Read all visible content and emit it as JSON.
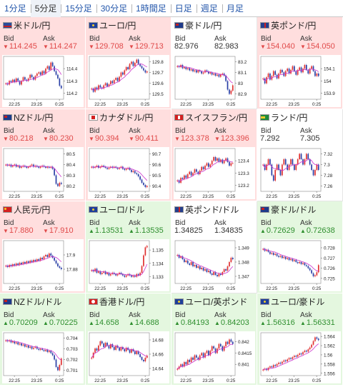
{
  "timeframe_tabs": [
    "1分足",
    "5分足",
    "15分足",
    "30分足",
    "1時間足",
    "日足",
    "週足",
    "月足"
  ],
  "active_tab": 1,
  "labels": {
    "bid": "Bid",
    "ask": "Ask"
  },
  "colors": {
    "down_bg": "#ffdede",
    "up_bg": "#e4f7df",
    "down_text": "#e04a4a",
    "up_text": "#2f8f2f",
    "candle_up": "#e03030",
    "candle_down": "#2a3fa6",
    "moving_average": "#cc33cc"
  },
  "pairs": [
    {
      "name": "米ドル/円",
      "flag": "us-flag-icon",
      "trend": "down",
      "arrow": "▼",
      "bid": "114.245",
      "ask": "114.247",
      "chart_data": {
        "type": "candlestick",
        "x_ticks": [
          "22:25",
          "23:25",
          "0:25"
        ],
        "y_ticks": [
          "114.4",
          "114.3",
          "114.2"
        ],
        "ylim": [
          114.15,
          114.5
        ],
        "closes": [
          114.28,
          114.27,
          114.3,
          114.29,
          114.31,
          114.29,
          114.32,
          114.3,
          114.27,
          114.3,
          114.33,
          114.31,
          114.3,
          114.32,
          114.35,
          114.33,
          114.31,
          114.34,
          114.36,
          114.37,
          114.35,
          114.38,
          114.36,
          114.4,
          114.42,
          114.39,
          114.45,
          114.42,
          114.38,
          114.35,
          114.32,
          114.26,
          114.24
        ]
      }
    },
    {
      "name": "ユーロ/円",
      "flag": "eu-flag-icon",
      "trend": "down",
      "arrow": "▼",
      "bid": "129.708",
      "ask": "129.713",
      "chart_data": {
        "type": "candlestick",
        "x_ticks": [
          "22:25",
          "23:25",
          "0:25"
        ],
        "y_ticks": [
          "129.8",
          "129.7",
          "129.6",
          "129.5"
        ],
        "ylim": [
          129.45,
          129.85
        ],
        "closes": [
          129.55,
          129.52,
          129.56,
          129.54,
          129.58,
          129.56,
          129.55,
          129.58,
          129.6,
          129.57,
          129.59,
          129.62,
          129.6,
          129.63,
          129.65,
          129.62,
          129.66,
          129.7,
          129.68,
          129.72,
          129.75,
          129.73,
          129.78,
          129.8,
          129.76,
          129.79,
          129.82,
          129.78,
          129.76,
          129.74,
          129.72,
          129.7,
          129.71
        ]
      }
    },
    {
      "name": "豪ドル/円",
      "flag": "au-flag-icon",
      "trend": "neutral",
      "arrow": "",
      "bid": "82.976",
      "ask": "82.983",
      "chart_data": {
        "type": "candlestick",
        "x_ticks": [
          "22:25",
          "23:25",
          "0:25"
        ],
        "y_ticks": [
          "83.2",
          "83.1",
          "83",
          "82.9"
        ],
        "ylim": [
          82.85,
          83.25
        ],
        "closes": [
          83.16,
          83.15,
          83.17,
          83.14,
          83.15,
          83.13,
          83.14,
          83.12,
          83.13,
          83.11,
          83.12,
          83.1,
          83.12,
          83.11,
          83.09,
          83.1,
          83.12,
          83.11,
          83.09,
          83.1,
          83.08,
          83.09,
          83.07,
          83.08,
          83.06,
          83.08,
          83.09,
          83.07,
          83.02,
          82.94,
          82.9,
          82.93,
          82.98
        ]
      }
    },
    {
      "name": "英ポンド/円",
      "flag": "gb-flag-icon",
      "trend": "down",
      "arrow": "▼",
      "bid": "154.040",
      "ask": "154.050",
      "chart_data": {
        "type": "candlestick",
        "x_ticks": [
          "22:25",
          "23:25",
          "0:25"
        ],
        "y_ticks": [
          "154.1",
          "154",
          "153.9"
        ],
        "ylim": [
          153.85,
          154.2
        ],
        "closes": [
          154.02,
          153.98,
          154.03,
          154.06,
          154.01,
          154.04,
          154.08,
          154.05,
          154.02,
          154.06,
          154.09,
          154.07,
          154.04,
          154.08,
          154.1,
          154.06,
          154.09,
          154.12,
          154.08,
          154.05,
          154.09,
          154.11,
          154.07,
          154.1,
          154.13,
          154.09,
          154.06,
          154.1,
          154.12,
          154.08,
          154.04,
          154.06,
          154.04
        ]
      }
    },
    {
      "name": "NZドル/円",
      "flag": "nz-flag-icon",
      "trend": "down",
      "arrow": "▼",
      "bid": "80.218",
      "ask": "80.230",
      "chart_data": {
        "type": "candlestick",
        "x_ticks": [
          "22:25",
          "23:25",
          "0:25"
        ],
        "y_ticks": [
          "80.5",
          "80.4",
          "80.3",
          "80.2"
        ],
        "ylim": [
          80.15,
          80.55
        ],
        "closes": [
          80.4,
          80.39,
          80.4,
          80.38,
          80.39,
          80.4,
          80.38,
          80.39,
          80.37,
          80.38,
          80.39,
          80.38,
          80.37,
          80.38,
          80.39,
          80.4,
          80.38,
          80.39,
          80.38,
          80.37,
          80.38,
          80.39,
          80.38,
          80.37,
          80.38,
          80.37,
          80.38,
          80.36,
          80.3,
          80.22,
          80.2,
          80.23,
          80.22
        ]
      }
    },
    {
      "name": "カナダドル/円",
      "flag": "ca-flag-icon",
      "trend": "down",
      "arrow": "▼",
      "bid": "90.394",
      "ask": "90.411",
      "chart_data": {
        "type": "candlestick",
        "x_ticks": [
          "22:25",
          "23:25",
          "0:25"
        ],
        "y_ticks": [
          "90.7",
          "90.6",
          "90.5",
          "90.4"
        ],
        "ylim": [
          90.35,
          90.75
        ],
        "closes": [
          90.58,
          90.57,
          90.58,
          90.59,
          90.57,
          90.58,
          90.59,
          90.58,
          90.57,
          90.56,
          90.57,
          90.58,
          90.57,
          90.58,
          90.57,
          90.56,
          90.57,
          90.58,
          90.56,
          90.55,
          90.56,
          90.57,
          90.55,
          90.53,
          90.54,
          90.52,
          90.51,
          90.49,
          90.46,
          90.43,
          90.41,
          90.39,
          90.4
        ]
      }
    },
    {
      "name": "スイスフラン/円",
      "flag": "ch-flag-icon",
      "trend": "down",
      "arrow": "▼",
      "bid": "123.378",
      "ask": "123.396",
      "chart_data": {
        "type": "candlestick",
        "x_ticks": [
          "22:25",
          "23:25",
          "0:25"
        ],
        "y_ticks": [
          "123.4",
          "123.3",
          "123.2"
        ],
        "ylim": [
          123.15,
          123.5
        ],
        "closes": [
          123.24,
          123.22,
          123.26,
          123.25,
          123.28,
          123.26,
          123.29,
          123.31,
          123.28,
          123.3,
          123.33,
          123.31,
          123.29,
          123.32,
          123.35,
          123.33,
          123.36,
          123.38,
          123.35,
          123.37,
          123.4,
          123.43,
          123.4,
          123.42,
          123.39,
          123.41,
          123.38,
          123.4,
          123.42,
          123.39,
          123.36,
          123.38,
          123.38
        ]
      }
    },
    {
      "name": "ランド/円",
      "flag": "za-flag-icon",
      "trend": "neutral",
      "arrow": "",
      "bid": "7.292",
      "ask": "7.305",
      "chart_data": {
        "type": "candlestick",
        "x_ticks": [
          "22:25",
          "23:25",
          "0:25"
        ],
        "y_ticks": [
          "7.32",
          "7.3",
          "7.28",
          "7.26"
        ],
        "ylim": [
          7.25,
          7.33
        ],
        "closes": [
          7.3,
          7.29,
          7.3,
          7.31,
          7.3,
          7.28,
          7.27,
          7.29,
          7.3,
          7.29,
          7.28,
          7.3,
          7.31,
          7.3,
          7.29,
          7.3,
          7.31,
          7.3,
          7.29,
          7.3,
          7.31,
          7.32,
          7.31,
          7.3,
          7.31,
          7.32,
          7.31,
          7.3,
          7.29,
          7.28,
          7.29,
          7.3,
          7.29
        ]
      }
    },
    {
      "name": "人民元/円",
      "flag": "cn-flag-icon",
      "trend": "down",
      "arrow": "▼",
      "bid": "17.880",
      "ask": "17.910",
      "chart_data": {
        "type": "candlestick",
        "x_ticks": [
          "22:25",
          "23:25",
          "0:25"
        ],
        "y_ticks": [
          "17.9",
          "17.88"
        ],
        "ylim": [
          17.86,
          17.92
        ],
        "closes": [
          17.885,
          17.883,
          17.886,
          17.884,
          17.887,
          17.885,
          17.888,
          17.886,
          17.889,
          17.887,
          17.89,
          17.888,
          17.891,
          17.889,
          17.892,
          17.89,
          17.893,
          17.891,
          17.894,
          17.892,
          17.896,
          17.894,
          17.898,
          17.9,
          17.897,
          17.902,
          17.899,
          17.896,
          17.892,
          17.888,
          17.884,
          17.882,
          17.88
        ]
      }
    },
    {
      "name": "ユーロ/ドル",
      "flag": "eu-flag-icon",
      "trend": "up",
      "arrow": "▲",
      "bid": "1.13531",
      "ask": "1.13535",
      "chart_data": {
        "type": "candlestick",
        "x_ticks": [
          "22:25",
          "23:25",
          "0:25"
        ],
        "y_ticks": [
          "1.135",
          "1.134",
          "1.133"
        ],
        "ylim": [
          1.1325,
          1.1357
        ],
        "closes": [
          1.1335,
          1.1334,
          1.1336,
          1.1333,
          1.1334,
          1.1332,
          1.1333,
          1.1334,
          1.1332,
          1.1333,
          1.1331,
          1.1332,
          1.1333,
          1.1332,
          1.1331,
          1.1332,
          1.1333,
          1.1332,
          1.1331,
          1.133,
          1.1331,
          1.1332,
          1.1331,
          1.133,
          1.1331,
          1.133,
          1.1332,
          1.1331,
          1.1333,
          1.1338,
          1.1346,
          1.1352,
          1.1353
        ]
      }
    },
    {
      "name": "英ポンド/ドル",
      "flag": "gb-flag-icon",
      "trend": "neutral",
      "arrow": "",
      "bid": "1.34825",
      "ask": "1.34835",
      "chart_data": {
        "type": "candlestick",
        "x_ticks": [
          "22:25",
          "23:25",
          "0:25"
        ],
        "y_ticks": [
          "1.349",
          "1.348",
          "1.347"
        ],
        "ylim": [
          1.3465,
          1.3495
        ],
        "closes": [
          1.3485,
          1.3483,
          1.3484,
          1.3482,
          1.348,
          1.3481,
          1.3479,
          1.3478,
          1.348,
          1.3477,
          1.3478,
          1.3476,
          1.3477,
          1.3475,
          1.3476,
          1.3474,
          1.3475,
          1.3473,
          1.3474,
          1.3472,
          1.3471,
          1.3473,
          1.3471,
          1.347,
          1.3472,
          1.3471,
          1.3473,
          1.3475,
          1.3474,
          1.3477,
          1.348,
          1.3483,
          1.3482
        ]
      }
    },
    {
      "name": "豪ドル/ドル",
      "flag": "au-flag-icon",
      "trend": "up",
      "arrow": "▲",
      "bid": "0.72629",
      "ask": "0.72638",
      "chart_data": {
        "type": "candlestick",
        "x_ticks": [
          "22:25",
          "23:25",
          "0:25"
        ],
        "y_ticks": [
          "0.728",
          "0.727",
          "0.726",
          "0.725"
        ],
        "ylim": [
          0.7245,
          0.7287
        ],
        "closes": [
          0.7279,
          0.7277,
          0.7278,
          0.7276,
          0.7274,
          0.7275,
          0.7273,
          0.7274,
          0.7272,
          0.7271,
          0.7272,
          0.727,
          0.7271,
          0.7269,
          0.727,
          0.7268,
          0.7269,
          0.7267,
          0.7268,
          0.7266,
          0.7265,
          0.7266,
          0.7264,
          0.7265,
          0.7263,
          0.7262,
          0.726,
          0.7258,
          0.7255,
          0.7252,
          0.7253,
          0.7256,
          0.7263
        ]
      }
    },
    {
      "name": "NZドル/ドル",
      "flag": "nz-flag-icon",
      "trend": "up",
      "arrow": "▲",
      "bid": "0.70209",
      "ask": "0.70225",
      "chart_data": {
        "type": "candlestick",
        "x_ticks": [
          "22:25",
          "23:25",
          "0:25"
        ],
        "y_ticks": [
          "0.704",
          "0.703",
          "0.702",
          "0.701"
        ],
        "ylim": [
          0.7005,
          0.7045
        ],
        "closes": [
          0.7038,
          0.7037,
          0.7038,
          0.7036,
          0.7037,
          0.7035,
          0.7036,
          0.7034,
          0.7035,
          0.7033,
          0.7034,
          0.7032,
          0.7033,
          0.7031,
          0.7032,
          0.703,
          0.7031,
          0.7032,
          0.703,
          0.7029,
          0.703,
          0.7029,
          0.7028,
          0.7029,
          0.7027,
          0.7028,
          0.7026,
          0.7024,
          0.702,
          0.7013,
          0.701,
          0.7015,
          0.7021
        ]
      }
    },
    {
      "name": "香港ドル/円",
      "flag": "hk-flag-icon",
      "trend": "up",
      "arrow": "▲",
      "bid": "14.658",
      "ask": "14.688",
      "chart_data": {
        "type": "candlestick",
        "x_ticks": [
          "22:25",
          "23:25",
          "0:25"
        ],
        "y_ticks": [
          "14.68",
          "14.66",
          "14.64"
        ],
        "ylim": [
          14.63,
          14.69
        ],
        "closes": [
          14.655,
          14.662,
          14.668,
          14.665,
          14.672,
          14.678,
          14.675,
          14.67,
          14.676,
          14.672,
          14.668,
          14.674,
          14.67,
          14.666,
          14.672,
          14.669,
          14.665,
          14.67,
          14.667,
          14.664,
          14.669,
          14.666,
          14.662,
          14.667,
          14.664,
          14.66,
          14.664,
          14.66,
          14.656,
          14.652,
          14.65,
          14.655,
          14.658
        ]
      }
    },
    {
      "name": "ユーロ/英ポンド",
      "flag": "eu-flag-icon",
      "trend": "up",
      "arrow": "▲",
      "bid": "0.84193",
      "ask": "0.84203",
      "chart_data": {
        "type": "candlestick",
        "x_ticks": [
          "22:25",
          "23:25",
          "0:25"
        ],
        "y_ticks": [
          "0.842",
          "0.8415",
          "0.841"
        ],
        "ylim": [
          0.8405,
          0.8424
        ],
        "closes": [
          0.8408,
          0.8409,
          0.841,
          0.8409,
          0.8411,
          0.841,
          0.8412,
          0.8411,
          0.8413,
          0.8412,
          0.8414,
          0.8413,
          0.8412,
          0.8414,
          0.8415,
          0.8413,
          0.8415,
          0.8416,
          0.8414,
          0.8416,
          0.8418,
          0.8417,
          0.8415,
          0.8417,
          0.8419,
          0.8418,
          0.8416,
          0.8418,
          0.842,
          0.8419,
          0.8421,
          0.842,
          0.8419
        ]
      }
    },
    {
      "name": "ユーロ/豪ドル",
      "flag": "eu-flag-icon",
      "trend": "up",
      "arrow": "▲",
      "bid": "1.56316",
      "ask": "1.56331",
      "chart_data": {
        "type": "candlestick",
        "x_ticks": [
          "22:25",
          "23:25",
          "0:25"
        ],
        "y_ticks": [
          "1.564",
          "1.562",
          "1.56",
          "1.558",
          "1.556"
        ],
        "ylim": [
          1.5555,
          1.5648
        ],
        "closes": [
          1.5568,
          1.557,
          1.5567,
          1.5572,
          1.5575,
          1.5573,
          1.5578,
          1.5576,
          1.558,
          1.5583,
          1.5581,
          1.5585,
          1.5588,
          1.5586,
          1.559,
          1.5593,
          1.5591,
          1.5595,
          1.5598,
          1.5596,
          1.56,
          1.5603,
          1.5601,
          1.5606,
          1.5609,
          1.5607,
          1.5612,
          1.5616,
          1.5622,
          1.563,
          1.5638,
          1.5635,
          1.5632
        ]
      }
    }
  ]
}
